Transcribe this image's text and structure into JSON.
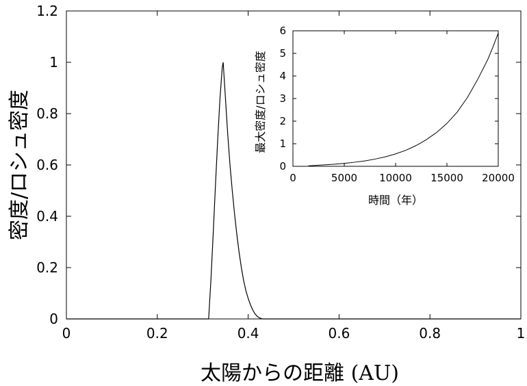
{
  "chart_data": [
    {
      "type": "line",
      "title": "",
      "xlabel": "太陽からの距離 (AU)",
      "ylabel": "密度/ロシュ密度",
      "xlim": [
        0,
        1
      ],
      "ylim": [
        0,
        1.2
      ],
      "x_ticks": [
        "0",
        "0.2",
        "0.4",
        "0.6",
        "0.8",
        "1"
      ],
      "y_ticks": [
        "0",
        "0.2",
        "0.4",
        "0.6",
        "0.8",
        "1",
        "1.2"
      ],
      "grid": false,
      "series": [
        {
          "x": [
            0.0,
            0.313,
            0.318,
            0.323,
            0.328,
            0.333,
            0.338,
            0.343,
            0.345,
            0.35,
            0.355,
            0.36,
            0.365,
            0.37,
            0.375,
            0.38,
            0.385,
            0.39,
            0.395,
            0.4,
            0.405,
            0.41,
            0.415,
            0.42,
            0.425,
            0.43,
            0.431,
            1.0
          ],
          "y": [
            0.0,
            0.0,
            0.15,
            0.33,
            0.52,
            0.7,
            0.86,
            0.98,
            1.0,
            0.86,
            0.72,
            0.6,
            0.5,
            0.41,
            0.33,
            0.26,
            0.2,
            0.15,
            0.11,
            0.08,
            0.055,
            0.035,
            0.02,
            0.01,
            0.004,
            0.001,
            0.0,
            0.0
          ]
        }
      ]
    },
    {
      "type": "line",
      "title": "",
      "xlabel": "時間（年）",
      "ylabel": "最大密度/ロシュ密度",
      "xlim": [
        0,
        20000
      ],
      "ylim": [
        0,
        6
      ],
      "x_ticks": [
        "0",
        "5000",
        "10000",
        "15000",
        "20000"
      ],
      "y_ticks": [
        "0",
        "1",
        "2",
        "3",
        "4",
        "5",
        "6"
      ],
      "grid": false,
      "series": [
        {
          "x": [
            1500,
            2500,
            4000,
            5000,
            6000,
            7000,
            8000,
            9000,
            10000,
            11000,
            12000,
            13000,
            14000,
            15000,
            16000,
            17000,
            18000,
            19000,
            19500,
            20000
          ],
          "y": [
            0.02,
            0.05,
            0.09,
            0.13,
            0.18,
            0.24,
            0.32,
            0.42,
            0.55,
            0.71,
            0.92,
            1.18,
            1.5,
            1.9,
            2.4,
            3.05,
            3.85,
            4.75,
            5.3,
            5.9
          ]
        }
      ]
    }
  ]
}
